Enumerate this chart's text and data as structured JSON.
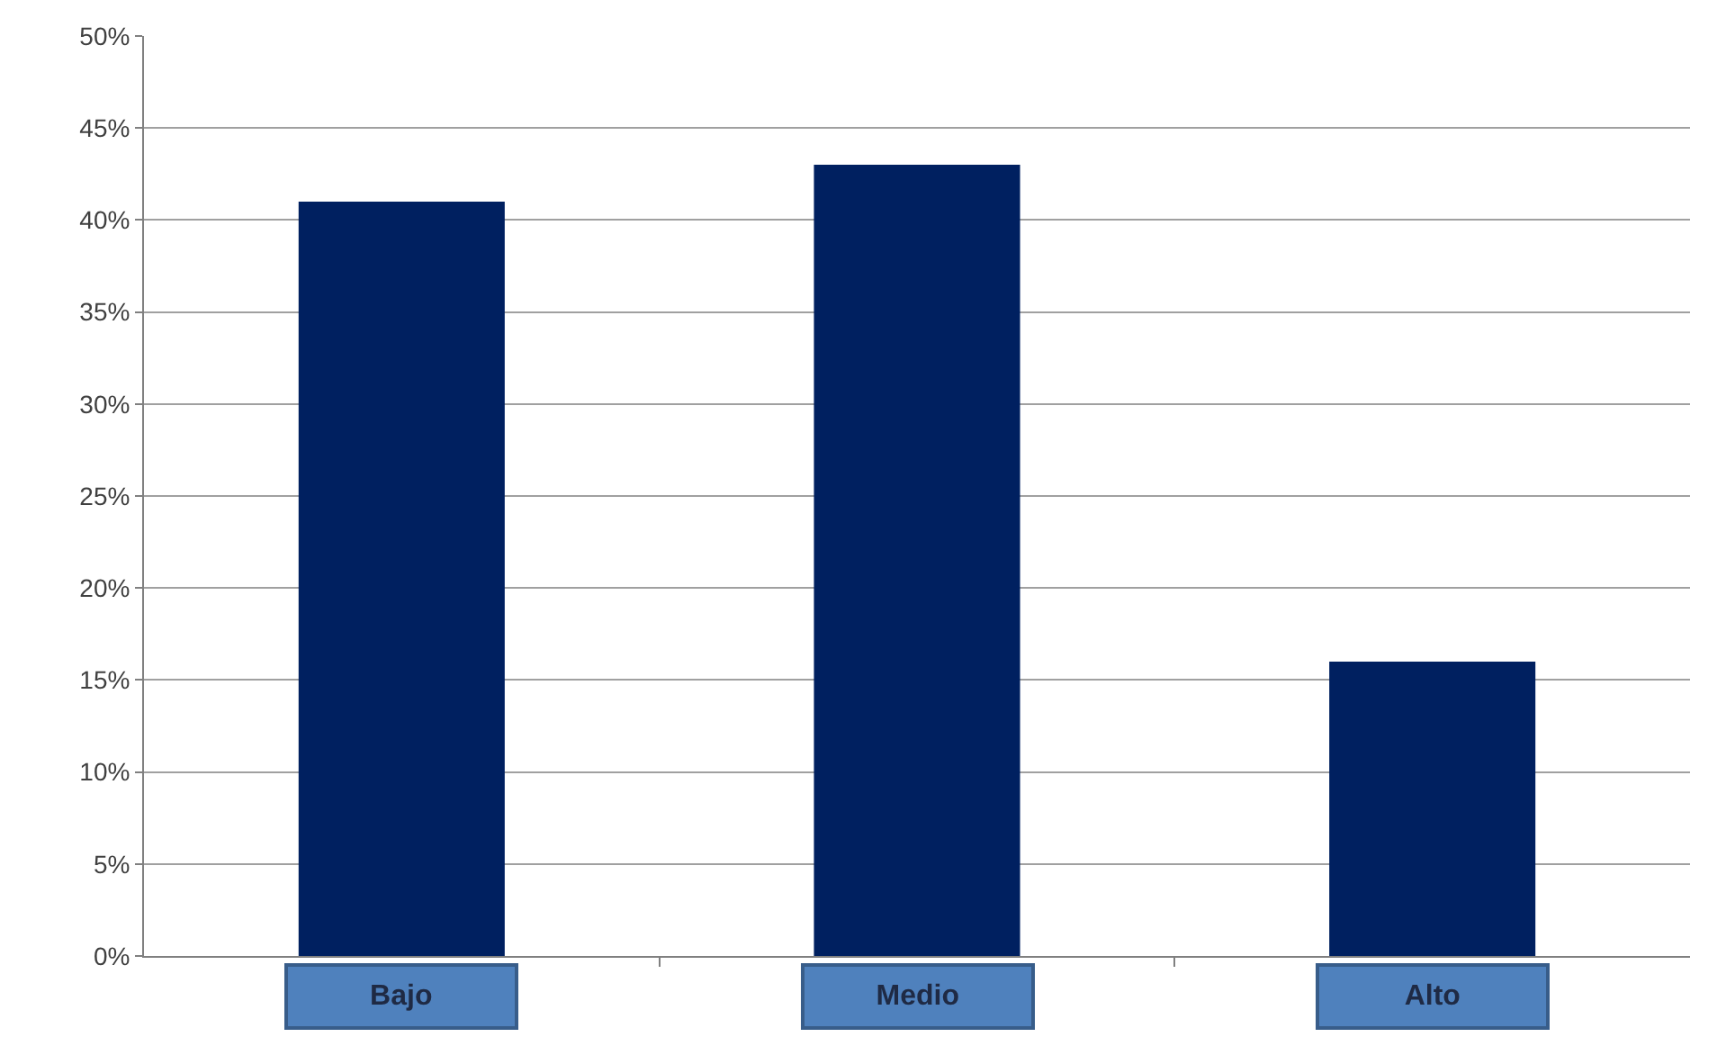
{
  "chart_data": {
    "type": "bar",
    "categories": [
      "Bajo",
      "Medio",
      "Alto"
    ],
    "values": [
      41,
      43,
      16
    ],
    "color": "#002060",
    "ylim": [
      0,
      50
    ],
    "yticks": [
      {
        "value": 0,
        "label": "0%"
      },
      {
        "value": 5,
        "label": "5%"
      },
      {
        "value": 10,
        "label": "10%"
      },
      {
        "value": 15,
        "label": "15%"
      },
      {
        "value": 20,
        "label": "20%"
      },
      {
        "value": 25,
        "label": "25%"
      },
      {
        "value": 30,
        "label": "30%"
      },
      {
        "value": 35,
        "label": "35%"
      },
      {
        "value": 40,
        "label": "40%"
      },
      {
        "value": 45,
        "label": "45%"
      },
      {
        "value": 50,
        "label": "50%"
      }
    ],
    "grid": "y",
    "legend": false
  }
}
